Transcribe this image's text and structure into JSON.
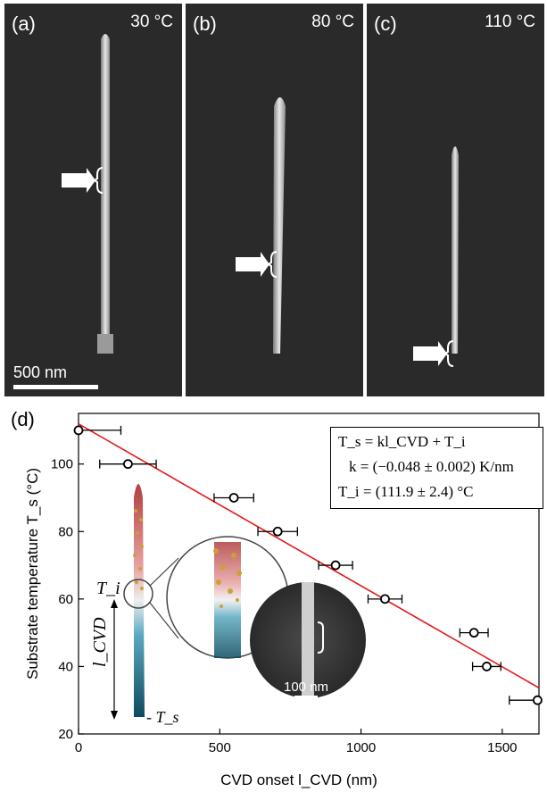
{
  "panels": [
    {
      "label": "(a)",
      "temperature": "30 °C"
    },
    {
      "label": "(b)",
      "temperature": "80 °C"
    },
    {
      "label": "(c)",
      "temperature": "110 °C"
    }
  ],
  "scalebar": "500 nm",
  "panel_d_label": "(d)",
  "equations": {
    "line1": "T_s = kl_CVD + T_i",
    "line2": "k = (−0.048 ± 0.002) K/nm",
    "line3": "T_i = (111.9 ± 2.4) °C"
  },
  "inset": {
    "ti_label": "T_i",
    "lcvd_label": "l_CVD",
    "ts_label": "- T_s",
    "scalebar": "100 nm"
  },
  "chart_data": {
    "type": "scatter",
    "xlabel": "CVD onset l_CVD (nm)",
    "ylabel": "Substrate temperature T_s (°C)",
    "xlim": [
      0,
      1630
    ],
    "ylim": [
      20,
      115
    ],
    "xticks": [
      0,
      500,
      1000,
      1500
    ],
    "yticks": [
      20,
      40,
      60,
      80,
      100
    ],
    "points": [
      {
        "x": 0,
        "y": 110,
        "xerr": 150
      },
      {
        "x": 175,
        "y": 100,
        "xerr": 100
      },
      {
        "x": 550,
        "y": 90,
        "xerr": 70
      },
      {
        "x": 705,
        "y": 80,
        "xerr": 70
      },
      {
        "x": 910,
        "y": 70,
        "xerr": 60
      },
      {
        "x": 1085,
        "y": 60,
        "xerr": 60
      },
      {
        "x": 1400,
        "y": 50,
        "xerr": 50
      },
      {
        "x": 1445,
        "y": 40,
        "xerr": 50
      },
      {
        "x": 1625,
        "y": 30,
        "xerr": 100
      }
    ],
    "fit": {
      "slope": -0.048,
      "intercept": 111.9
    },
    "line_color": "#e41a1a",
    "marker_color": "#000000"
  }
}
